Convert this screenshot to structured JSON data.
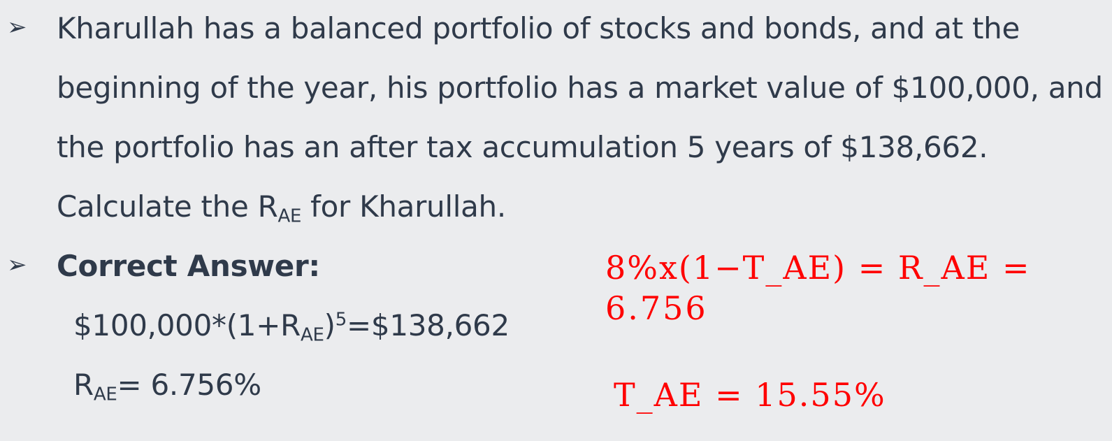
{
  "bullets": {
    "symbol": "➢"
  },
  "question": {
    "line1": "Kharullah has a balanced portfolio of stocks and bonds, and at the",
    "line2": "beginning of the year, his portfolio has a market value of $100,000, and",
    "line3": "the portfolio has an after tax accumulation 5 years of $138,662.",
    "line4_prefix": "Calculate the R",
    "line4_sub": "AE",
    "line4_suffix": " for Kharullah."
  },
  "answer": {
    "heading": "Correct Answer:",
    "eq1_prefix": "$100,000*(1+R",
    "eq1_sub": "AE",
    "eq1_mid": ")",
    "eq1_sup": "5",
    "eq1_suffix": "=$138,662",
    "eq2_prefix": "R",
    "eq2_sub": "AE",
    "eq2_suffix": "= 6.756%"
  },
  "handwritten": {
    "line1": "8%x(1−T_AE) = R_AE =",
    "line2": "6.756",
    "line3": "T_AE = 15.55%",
    "color": "#ff0000"
  }
}
